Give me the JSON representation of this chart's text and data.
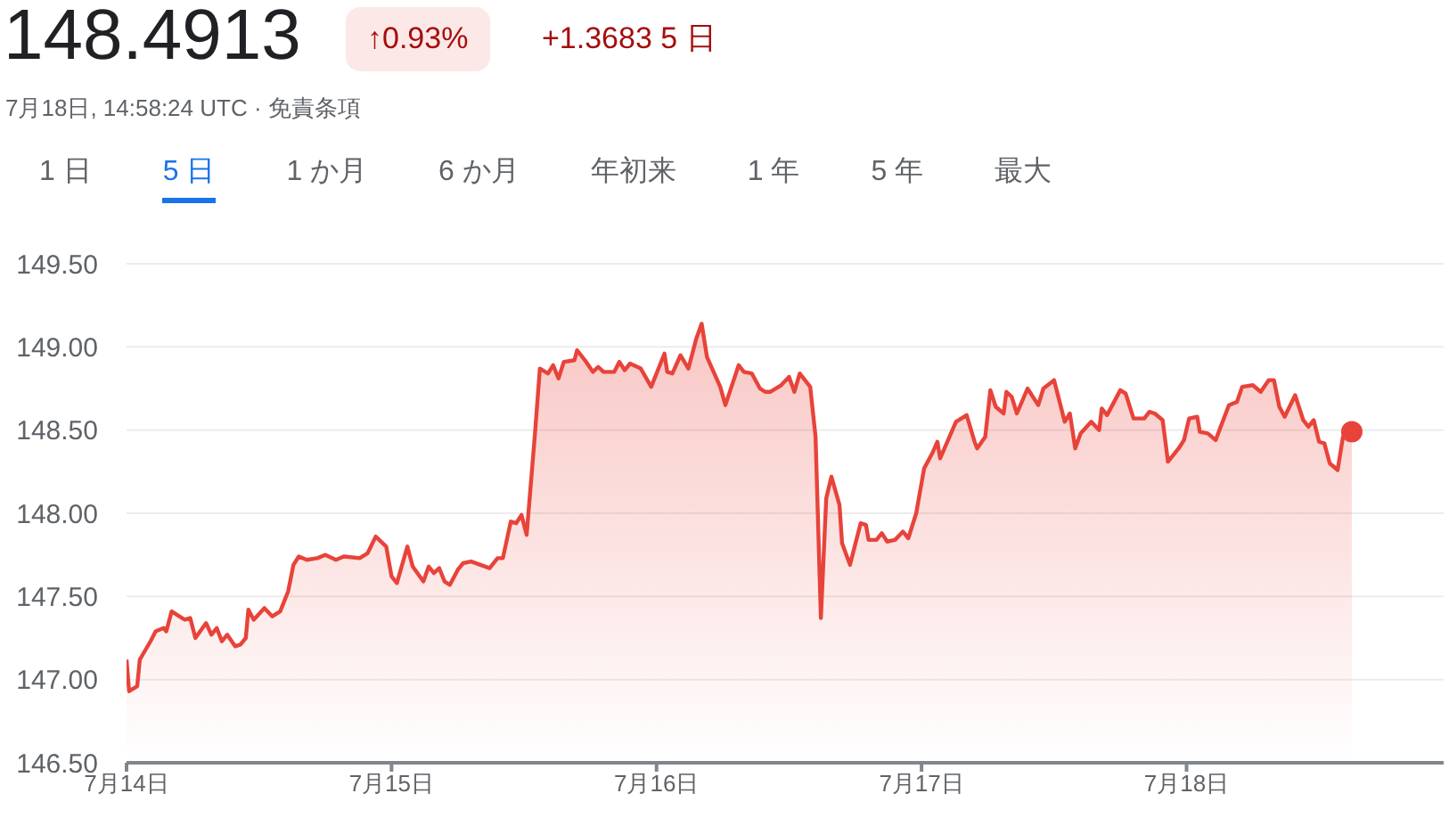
{
  "chart_data": {
    "type": "area",
    "title": "148.4913",
    "subtitle": "7月18日, 14:58:24 UTC · 免責条項",
    "annotations": [
      "↑0.93%",
      "+1.3683 5 日",
      "1 日",
      "5 日",
      "1 か月",
      "6 か月",
      "年初来",
      "1 年",
      "5 年",
      "最大"
    ],
    "x": [
      "--07-14T00:00",
      "--07-14T00:14",
      "--07-14T00:58",
      "--07-14T01:12",
      "--07-14T02:10",
      "--07-14T02:38",
      "--07-14T03:22",
      "--07-14T03:36",
      "--07-14T04:05",
      "--07-14T05:02",
      "--07-14T05:17",
      "--07-14T05:46",
      "--07-14T06:14",
      "--07-14T07:12",
      "--07-14T07:41",
      "--07-14T08:10",
      "--07-14T08:38",
      "--07-14T09:07",
      "--07-14T09:50",
      "--07-14T10:19",
      "--07-14T10:48",
      "--07-14T11:02",
      "--07-14T11:31",
      "--07-14T12:29",
      "--07-14T13:12",
      "--07-14T13:55",
      "--07-14T14:38",
      "--07-14T15:07",
      "--07-14T15:36",
      "--07-14T16:19",
      "--07-14T17:17",
      "--07-14T18:00",
      "--07-14T18:58",
      "--07-14T19:41",
      "--07-14T21:07",
      "--07-14T21:50",
      "--07-14T22:34",
      "--07-14T23:31",
      "--07-15T00:00",
      "--07-15T00:29",
      "--07-15T01:26",
      "--07-15T01:55",
      "--07-15T02:53",
      "--07-15T03:22",
      "--07-15T03:50",
      "--07-15T04:19",
      "--07-15T04:48",
      "--07-15T05:17",
      "--07-15T06:00",
      "--07-15T06:29",
      "--07-15T07:12",
      "--07-15T08:53",
      "--07-15T09:36",
      "--07-15T10:05",
      "--07-15T10:48",
      "--07-15T11:17",
      "--07-15T11:46",
      "--07-15T12:14",
      "--07-15T12:58",
      "--07-15T13:26",
      "--07-15T14:10",
      "--07-15T14:38",
      "--07-15T15:07",
      "--07-15T15:36",
      "--07-15T16:34",
      "--07-15T16:48",
      "--07-15T17:31",
      "--07-15T18:14",
      "--07-15T18:43",
      "--07-15T19:12",
      "--07-15T20:10",
      "--07-15T20:38",
      "--07-15T21:07",
      "--07-15T21:36",
      "--07-15T22:34",
      "--07-15T23:31",
      "--07-16T00:43",
      "--07-16T00:58",
      "--07-16T01:26",
      "--07-16T02:10",
      "--07-16T02:53",
      "--07-16T03:36",
      "--07-16T04:05",
      "--07-16T04:34",
      "--07-16T05:46",
      "--07-16T06:14",
      "--07-16T07:26",
      "--07-16T07:55",
      "--07-16T08:38",
      "--07-16T09:22",
      "--07-16T09:50",
      "--07-16T10:19",
      "--07-16T11:17",
      "--07-16T12:00",
      "--07-16T12:29",
      "--07-16T12:58",
      "--07-16T13:55",
      "--07-16T14:24",
      "--07-16T14:53",
      "--07-16T15:22",
      "--07-16T15:50",
      "--07-16T16:34",
      "--07-16T16:48",
      "--07-16T17:31",
      "--07-16T18:29",
      "--07-16T18:58",
      "--07-16T19:12",
      "--07-16T19:55",
      "--07-16T20:24",
      "--07-16T20:53",
      "--07-16T21:36",
      "--07-16T22:19",
      "--07-16T22:48",
      "--07-16T23:31",
      "--07-17T00:14",
      "--07-17T00:58",
      "--07-17T01:26",
      "--07-17T01:41",
      "--07-17T03:07",
      "--07-17T04:05",
      "--07-17T04:48",
      "--07-17T05:02",
      "--07-17T05:46",
      "--07-17T06:14",
      "--07-17T06:43",
      "--07-17T07:26",
      "--07-17T07:41",
      "--07-17T08:10",
      "--07-17T08:38",
      "--07-17T09:36",
      "--07-17T10:34",
      "--07-17T11:02",
      "--07-17T12:00",
      "--07-17T12:58",
      "--07-17T13:26",
      "--07-17T13:55",
      "--07-17T14:24",
      "--07-17T15:22",
      "--07-17T16:05",
      "--07-17T16:19",
      "--07-17T16:48",
      "--07-17T18:00",
      "--07-17T18:29",
      "--07-17T19:12",
      "--07-17T20:10",
      "--07-17T20:38",
      "--07-17T21:07",
      "--07-17T21:50",
      "--07-17T22:19",
      "--07-17T23:17",
      "--07-17T23:46",
      "--07-18T00:14",
      "--07-18T00:58",
      "--07-18T01:12",
      "--07-18T01:55",
      "--07-18T02:38",
      "--07-18T03:50",
      "--07-18T04:34",
      "--07-18T05:02",
      "--07-18T06:00",
      "--07-18T06:43",
      "--07-18T07:26",
      "--07-18T07:55",
      "--07-18T08:24",
      "--07-18T08:53",
      "--07-18T09:50",
      "--07-18T10:34",
      "--07-18T11:02",
      "--07-18T11:31",
      "--07-18T12:00",
      "--07-18T12:29",
      "--07-18T12:58",
      "--07-18T13:41",
      "--07-18T14:10",
      "--07-18T14:58"
    ],
    "series": [
      {
        "color": "#e8433a",
        "values": [
          147.12,
          146.93,
          146.96,
          147.12,
          147.23,
          147.29,
          147.31,
          147.29,
          147.41,
          147.37,
          147.36,
          147.37,
          147.25,
          147.34,
          147.27,
          147.31,
          147.23,
          147.27,
          147.2,
          147.21,
          147.25,
          147.42,
          147.36,
          147.43,
          147.38,
          147.41,
          147.53,
          147.69,
          147.74,
          147.72,
          147.73,
          147.75,
          147.72,
          147.74,
          147.73,
          147.76,
          147.86,
          147.8,
          147.62,
          147.58,
          147.8,
          147.68,
          147.59,
          147.68,
          147.64,
          147.67,
          147.59,
          147.57,
          147.66,
          147.7,
          147.71,
          147.67,
          147.73,
          147.73,
          147.95,
          147.94,
          147.99,
          147.87,
          148.46,
          148.87,
          148.84,
          148.89,
          148.81,
          148.91,
          148.92,
          148.98,
          148.92,
          148.85,
          148.88,
          148.85,
          148.85,
          148.91,
          148.86,
          148.9,
          148.87,
          148.76,
          148.96,
          148.85,
          148.84,
          148.95,
          148.87,
          149.05,
          149.14,
          148.94,
          148.76,
          148.65,
          148.89,
          148.85,
          148.84,
          148.75,
          148.73,
          148.73,
          148.77,
          148.82,
          148.73,
          148.84,
          148.76,
          148.46,
          147.37,
          148.09,
          148.22,
          148.05,
          147.82,
          147.69,
          147.94,
          147.93,
          147.84,
          147.84,
          147.88,
          147.83,
          147.84,
          147.89,
          147.85,
          148,
          148.27,
          148.36,
          148.43,
          148.33,
          148.55,
          148.59,
          148.43,
          148.39,
          148.46,
          148.74,
          148.64,
          148.6,
          148.73,
          148.7,
          148.6,
          148.75,
          148.65,
          148.75,
          148.8,
          148.55,
          148.6,
          148.39,
          148.48,
          148.55,
          148.5,
          148.63,
          148.59,
          148.74,
          148.72,
          148.57,
          148.57,
          148.61,
          148.6,
          148.56,
          148.31,
          148.39,
          148.44,
          148.57,
          148.58,
          148.49,
          148.48,
          148.44,
          148.65,
          148.67,
          148.76,
          148.77,
          148.73,
          148.8,
          148.8,
          148.64,
          148.58,
          148.71,
          148.56,
          148.52,
          148.56,
          148.43,
          148.42,
          148.3,
          148.26,
          148.46,
          148.49
        ]
      }
    ],
    "xlim": [
      "--07-14",
      "--07-18T23:17"
    ],
    "xticks": [
      {
        "value": "--07-14",
        "label": "7月14日"
      },
      {
        "value": "--07-15",
        "label": "7月15日"
      },
      {
        "value": "--07-16",
        "label": "7月16日"
      },
      {
        "value": "--07-17",
        "label": "7月17日"
      },
      {
        "value": "--07-18",
        "label": "7月18日"
      }
    ],
    "ylim": [
      146.5,
      149.5
    ],
    "yticks": [
      {
        "value": 146.5,
        "label": "146.50"
      },
      {
        "value": 147,
        "label": "147.00"
      },
      {
        "value": 147.5,
        "label": "147.50"
      },
      {
        "value": 148,
        "label": "148.00"
      },
      {
        "value": 148.5,
        "label": "148.50"
      },
      {
        "value": 149,
        "label": "149.00"
      },
      {
        "value": 149.5,
        "label": "149.50"
      }
    ],
    "grid": "y",
    "legend": false
  }
}
